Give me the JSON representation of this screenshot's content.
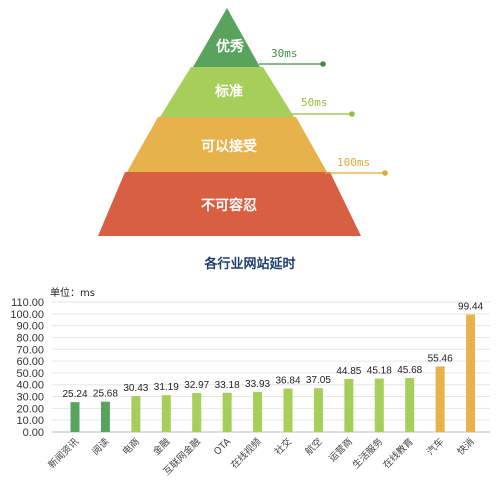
{
  "pyramid": {
    "levels": [
      {
        "label": "优秀",
        "color": "#5aa35e"
      },
      {
        "label": "标准",
        "color": "#a6ce5a"
      },
      {
        "label": "可以接受",
        "color": "#e7b24b"
      },
      {
        "label": "不可容忍",
        "color": "#d95f43"
      }
    ],
    "thresholds": [
      {
        "label": "30ms",
        "color": "#3e8e45"
      },
      {
        "label": "50ms",
        "color": "#8fbf3f"
      },
      {
        "label": "100ms",
        "color": "#e0a83a"
      }
    ]
  },
  "chart_data": {
    "type": "bar",
    "title": "各行业网站延时",
    "unit_label": "单位：ms",
    "ylim": [
      0,
      110
    ],
    "y_ticks": [
      "0.00",
      "10.00",
      "20.00",
      "30.00",
      "40.00",
      "50.00",
      "60.00",
      "70.00",
      "80.00",
      "90.00",
      "100.00",
      "110.00"
    ],
    "grid": true,
    "categories": [
      "新闻资讯",
      "阅读",
      "电商",
      "金融",
      "互联网金融",
      "OTA",
      "在线视频",
      "社交",
      "航空",
      "运营商",
      "生活服务",
      "在线教育",
      "汽车",
      "快消"
    ],
    "values": [
      25.24,
      25.68,
      30.43,
      31.19,
      32.97,
      33.18,
      33.93,
      36.84,
      37.05,
      44.85,
      45.18,
      45.68,
      55.46,
      99.44
    ],
    "value_labels": [
      "25.24",
      "25.68",
      "30.43",
      "31.19",
      "32.97",
      "33.18",
      "33.93",
      "36.84",
      "37.05",
      "44.85",
      "45.18",
      "45.68",
      "55.46",
      "99.44"
    ],
    "bar_colors": [
      "#5aa35e",
      "#5aa35e",
      "#a6ce5a",
      "#a6ce5a",
      "#a6ce5a",
      "#a6ce5a",
      "#a6ce5a",
      "#a6ce5a",
      "#a6ce5a",
      "#a6ce5a",
      "#a6ce5a",
      "#a6ce5a",
      "#e7b24b",
      "#e7b24b"
    ]
  }
}
